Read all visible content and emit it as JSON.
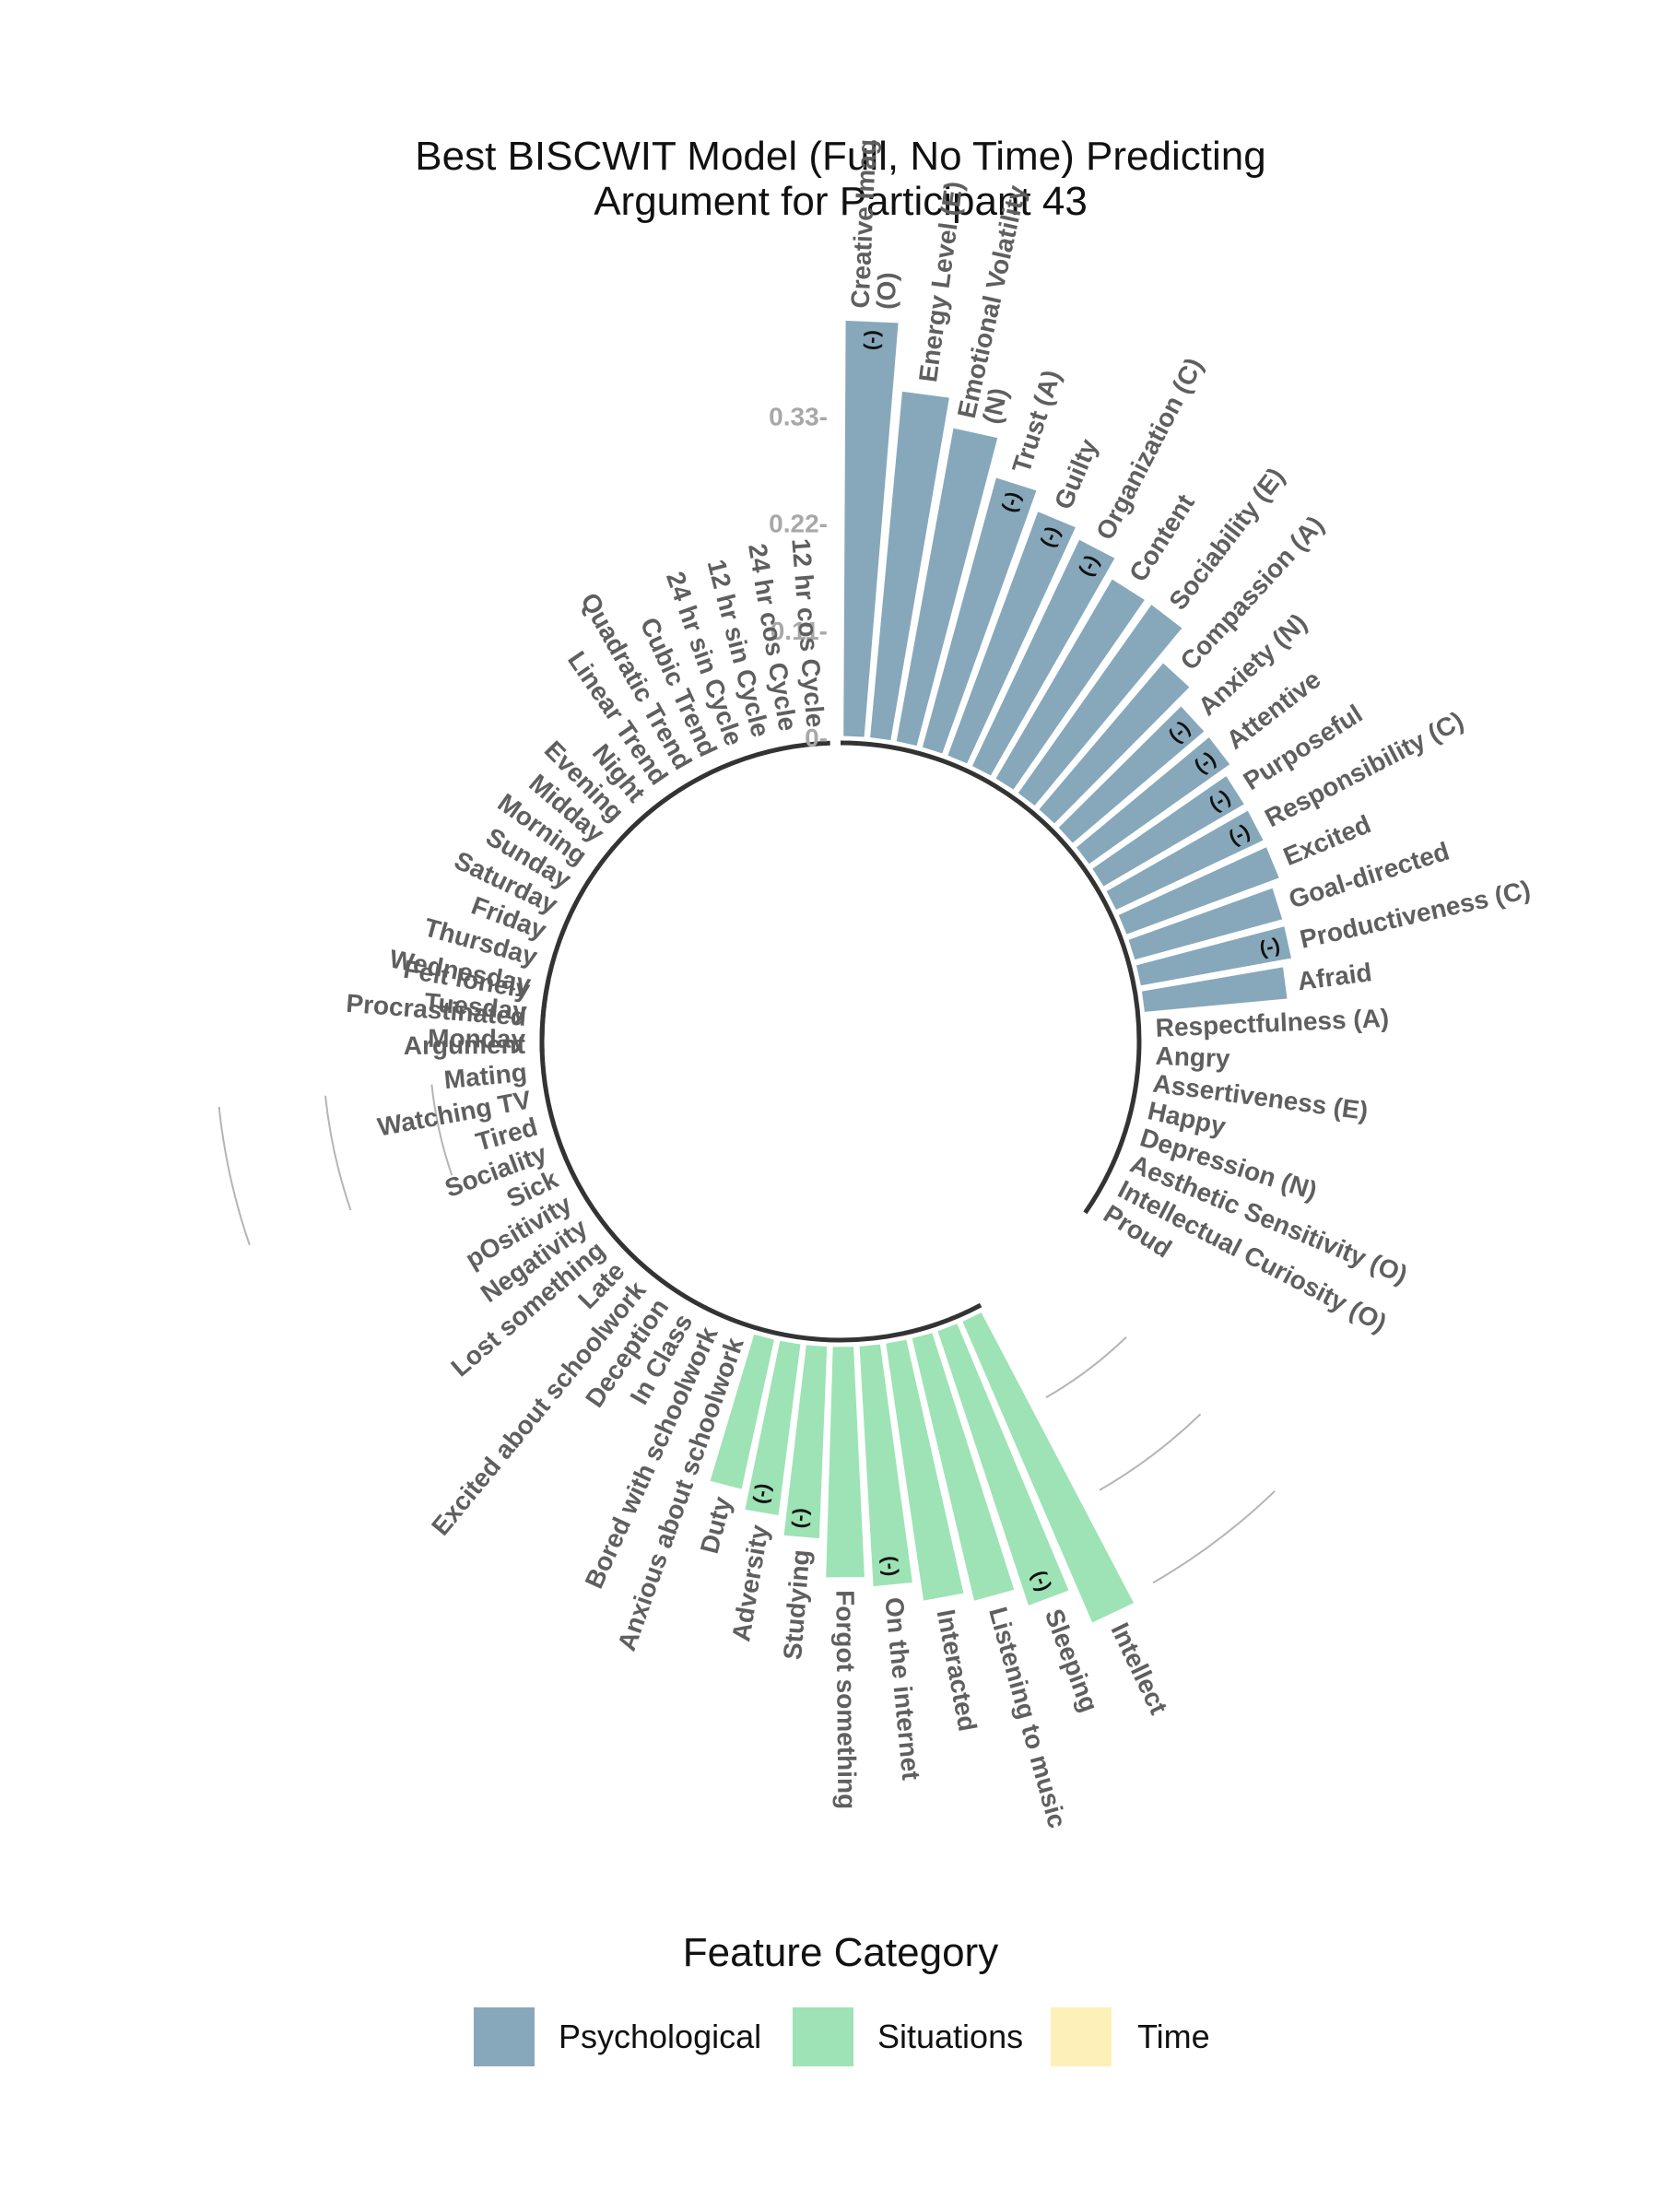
{
  "chart_data": {
    "type": "circular-bar",
    "title_lines": [
      "Best BISCWIT Model (Full, No Time) Predicting",
      "Argument for Participant 43"
    ],
    "radial_ticks": [
      "0-",
      "0.11-",
      "0.22-",
      "0.33-"
    ],
    "radial_tick_values": [
      0,
      0.11,
      0.22,
      0.33
    ],
    "negative_marker": "(-)",
    "legend": {
      "title": "Feature Category",
      "entries": [
        {
          "label": "Psychological",
          "color": "#87a8bb"
        },
        {
          "label": "Situations",
          "color": "#9de3b5"
        },
        {
          "label": "Time",
          "color": "#fdf0b8"
        }
      ]
    },
    "groups": [
      {
        "category": "Psychological",
        "color": "#87a8bb",
        "features": [
          {
            "label": "Creative Imag\n(O)",
            "value": 0.43,
            "negative": true
          },
          {
            "label": "Energy Level (E)",
            "value": 0.36,
            "negative": false
          },
          {
            "label": "Emotional Volatility\n(N)",
            "value": 0.33,
            "negative": false
          },
          {
            "label": "Trust (A)",
            "value": 0.29,
            "negative": true
          },
          {
            "label": "Guilty",
            "value": 0.27,
            "negative": true
          },
          {
            "label": "Organization (C)",
            "value": 0.26,
            "negative": true
          },
          {
            "label": "Content",
            "value": 0.24,
            "negative": false
          },
          {
            "label": "Sociability (E)",
            "value": 0.24,
            "negative": false
          },
          {
            "label": "Compassion (A)",
            "value": 0.2,
            "negative": false
          },
          {
            "label": "Anxiety (N)",
            "value": 0.18,
            "negative": true
          },
          {
            "label": "Attentive",
            "value": 0.18,
            "negative": true
          },
          {
            "label": "Purposeful",
            "value": 0.17,
            "negative": true
          },
          {
            "label": "Responsibility (C)",
            "value": 0.17,
            "negative": true
          },
          {
            "label": "Excited",
            "value": 0.17,
            "negative": false
          },
          {
            "label": "Goal-directed",
            "value": 0.16,
            "negative": false
          },
          {
            "label": "Productiveness (C)",
            "value": 0.16,
            "negative": true
          },
          {
            "label": "Afraid",
            "value": 0.15,
            "negative": false
          },
          {
            "label": "Respectfulness (A)",
            "value": 0,
            "negative": false
          },
          {
            "label": "Angry",
            "value": 0,
            "negative": false
          },
          {
            "label": "Assertiveness (E)",
            "value": 0,
            "negative": false
          },
          {
            "label": "Happy",
            "value": 0,
            "negative": false
          },
          {
            "label": "Depression (N)",
            "value": 0,
            "negative": false
          },
          {
            "label": "Aesthetic Sensitivity (O)",
            "value": 0,
            "negative": false
          },
          {
            "label": "Intellectual Curiosity (O)",
            "value": 0,
            "negative": false
          },
          {
            "label": "Proud",
            "value": 0,
            "negative": false
          }
        ]
      },
      {
        "category": "Situations",
        "color": "#9de3b5",
        "features": [
          {
            "label": "Intellect",
            "value": 0.34,
            "negative": false
          },
          {
            "label": "Sleeping",
            "value": 0.3,
            "negative": true
          },
          {
            "label": "Listening to music",
            "value": 0.28,
            "negative": false
          },
          {
            "label": "Interacted",
            "value": 0.27,
            "negative": false
          },
          {
            "label": "On the internet",
            "value": 0.25,
            "negative": true
          },
          {
            "label": "Forgot something",
            "value": 0.24,
            "negative": false
          },
          {
            "label": "Studying",
            "value": 0.2,
            "negative": true
          },
          {
            "label": "Adversity",
            "value": 0.18,
            "negative": true
          },
          {
            "label": "Duty",
            "value": 0.16,
            "negative": false
          },
          {
            "label": "Anxious about schoolwork",
            "value": 0,
            "negative": false
          },
          {
            "label": "Bored with schoolwork",
            "value": 0,
            "negative": false
          },
          {
            "label": "In Class",
            "value": 0,
            "negative": false
          },
          {
            "label": "Deception",
            "value": 0,
            "negative": false
          },
          {
            "label": "Excited about schoolwork",
            "value": 0,
            "negative": false
          },
          {
            "label": "Late",
            "value": 0,
            "negative": false
          },
          {
            "label": "Lost something",
            "value": 0,
            "negative": false
          },
          {
            "label": "Negativity",
            "value": 0,
            "negative": false
          },
          {
            "label": "pOsitivity",
            "value": 0,
            "negative": false
          },
          {
            "label": "Sick",
            "value": 0,
            "negative": false
          },
          {
            "label": "Sociality",
            "value": 0,
            "negative": false
          },
          {
            "label": "Tired",
            "value": 0,
            "negative": false
          },
          {
            "label": "Watching TV",
            "value": 0,
            "negative": false
          },
          {
            "label": "Mating",
            "value": 0,
            "negative": false
          },
          {
            "label": "Argument",
            "value": 0,
            "negative": false
          },
          {
            "label": "Procrastinated",
            "value": 0,
            "negative": false
          },
          {
            "label": "Felt lonely",
            "value": 0,
            "negative": false
          }
        ]
      },
      {
        "category": "Time",
        "color": "#fdf0b8",
        "features": [
          {
            "label": "Monday",
            "value": 0,
            "negative": false
          },
          {
            "label": "Tuesday",
            "value": 0,
            "negative": false
          },
          {
            "label": "Wednesday",
            "value": 0,
            "negative": false
          },
          {
            "label": "Thursday",
            "value": 0,
            "negative": false
          },
          {
            "label": "Friday",
            "value": 0,
            "negative": false
          },
          {
            "label": "Saturday",
            "value": 0,
            "negative": false
          },
          {
            "label": "Sunday",
            "value": 0,
            "negative": false
          },
          {
            "label": "Morning",
            "value": 0,
            "negative": false
          },
          {
            "label": "Midday",
            "value": 0,
            "negative": false
          },
          {
            "label": "Evening",
            "value": 0,
            "negative": false
          },
          {
            "label": "Night",
            "value": 0,
            "negative": false
          },
          {
            "label": "Linear Trend",
            "value": 0,
            "negative": false
          },
          {
            "label": "Quadratic Trend",
            "value": 0,
            "negative": false
          },
          {
            "label": "Cubic Trend",
            "value": 0,
            "negative": false
          },
          {
            "label": "24 hr sin Cycle",
            "value": 0,
            "negative": false
          },
          {
            "label": "12 hr sin Cycle",
            "value": 0,
            "negative": false
          },
          {
            "label": "24 hr cos Cycle",
            "value": 0,
            "negative": false
          },
          {
            "label": "12 hr cos Cycle",
            "value": 0,
            "negative": false
          }
        ]
      }
    ]
  }
}
